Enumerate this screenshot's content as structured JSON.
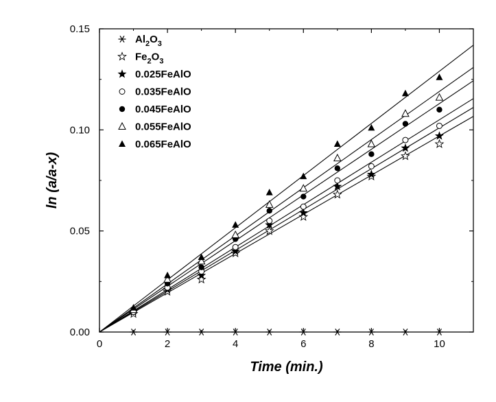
{
  "chart_data": {
    "type": "scatter",
    "xlabel": "Time (min.)",
    "ylabel": "ln (a/a-x)",
    "xlim": [
      0,
      11
    ],
    "ylim": [
      0,
      0.15
    ],
    "xticks": [
      0,
      2,
      4,
      6,
      8,
      10
    ],
    "xtick_labels": [
      "0",
      "2",
      "4",
      "6",
      "8",
      "10"
    ],
    "yticks": [
      0,
      0.05,
      0.1,
      0.15
    ],
    "ytick_labels": [
      "0.00",
      "0.05",
      "0.10",
      "0.15"
    ],
    "grid": false,
    "legend_position": "top-left",
    "series": [
      {
        "name": "Al2O3",
        "label_parts": [
          {
            "t": "Al"
          },
          {
            "t": "2",
            "sub": true
          },
          {
            "t": "O"
          },
          {
            "t": "3",
            "sub": true
          }
        ],
        "marker": "asterisk",
        "x": [
          1,
          2,
          3,
          4,
          5,
          6,
          7,
          8,
          9,
          10
        ],
        "y": [
          0,
          0,
          0,
          0,
          0,
          0,
          0,
          0,
          0,
          0
        ],
        "fit_slope": 0
      },
      {
        "name": "Fe2O3",
        "label_parts": [
          {
            "t": "Fe"
          },
          {
            "t": "2",
            "sub": true
          },
          {
            "t": "O"
          },
          {
            "t": "3",
            "sub": true
          }
        ],
        "marker": "star-open",
        "x": [
          1,
          2,
          3,
          4,
          5,
          6,
          7,
          8,
          9,
          10
        ],
        "y": [
          0.009,
          0.02,
          0.026,
          0.039,
          0.05,
          0.057,
          0.068,
          0.077,
          0.087,
          0.093
        ],
        "fit_slope": 0.0097
      },
      {
        "name": "0.025FeAlO",
        "label_parts": [
          {
            "t": "0.025FeAlO"
          }
        ],
        "marker": "star-filled",
        "x": [
          1,
          2,
          3,
          4,
          5,
          6,
          7,
          8,
          9,
          10
        ],
        "y": [
          0.01,
          0.021,
          0.028,
          0.04,
          0.053,
          0.059,
          0.072,
          0.078,
          0.091,
          0.097
        ],
        "fit_slope": 0.0101
      },
      {
        "name": "0.035FeAlO",
        "label_parts": [
          {
            "t": "0.035FeAlO"
          }
        ],
        "marker": "circle-open",
        "x": [
          1,
          2,
          3,
          4,
          5,
          6,
          7,
          8,
          9,
          10
        ],
        "y": [
          0.01,
          0.022,
          0.03,
          0.042,
          0.055,
          0.062,
          0.075,
          0.082,
          0.095,
          0.102
        ],
        "fit_slope": 0.0105
      },
      {
        "name": "0.045FeAlO",
        "label_parts": [
          {
            "t": "0.045FeAlO"
          }
        ],
        "marker": "circle-filled",
        "x": [
          1,
          2,
          3,
          4,
          5,
          6,
          7,
          8,
          9,
          10
        ],
        "y": [
          0.011,
          0.024,
          0.032,
          0.046,
          0.06,
          0.067,
          0.081,
          0.088,
          0.103,
          0.11
        ],
        "fit_slope": 0.0113
      },
      {
        "name": "0.055FeAlO",
        "label_parts": [
          {
            "t": "0.055FeAlO"
          }
        ],
        "marker": "triangle-open",
        "x": [
          1,
          2,
          3,
          4,
          5,
          6,
          7,
          8,
          9,
          10
        ],
        "y": [
          0.011,
          0.026,
          0.035,
          0.048,
          0.063,
          0.071,
          0.086,
          0.093,
          0.108,
          0.116
        ],
        "fit_slope": 0.0119
      },
      {
        "name": "0.065FeAlO",
        "label_parts": [
          {
            "t": "0.065FeAlO"
          }
        ],
        "marker": "triangle-filled",
        "x": [
          1,
          2,
          3,
          4,
          5,
          6,
          7,
          8,
          9,
          10
        ],
        "y": [
          0.012,
          0.028,
          0.037,
          0.053,
          0.069,
          0.077,
          0.093,
          0.101,
          0.118,
          0.126
        ],
        "fit_slope": 0.0129
      }
    ]
  }
}
